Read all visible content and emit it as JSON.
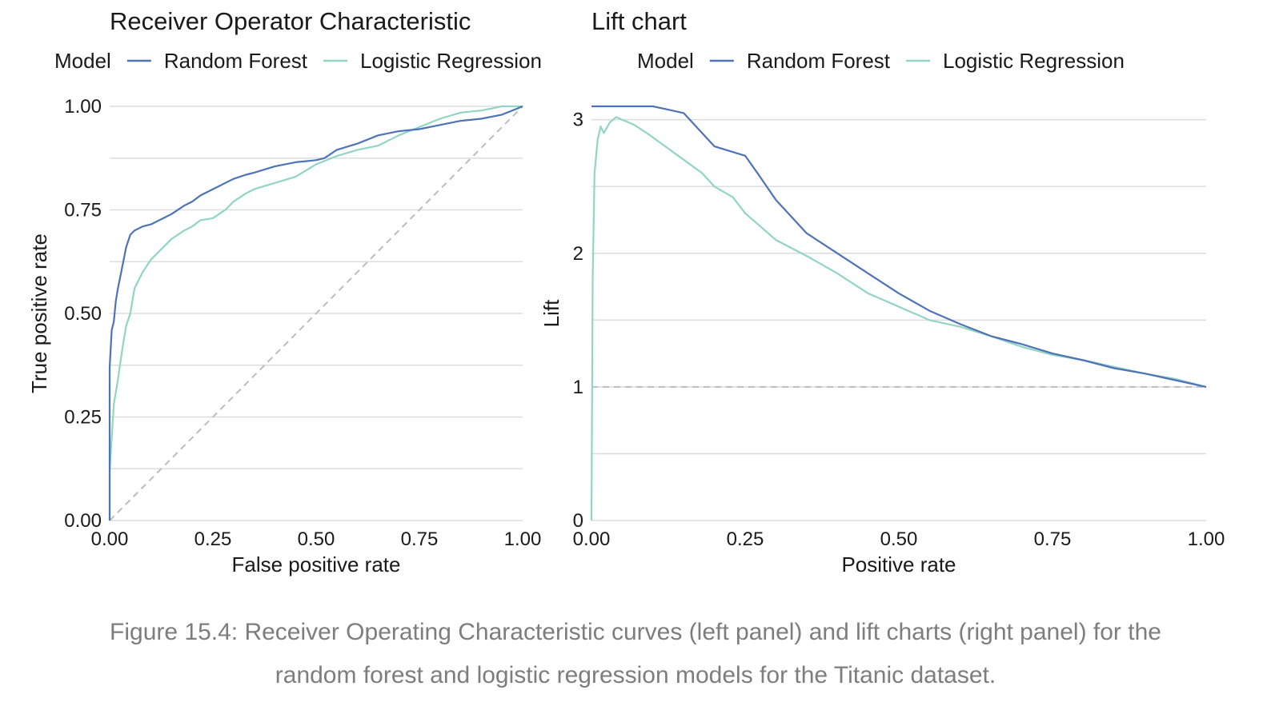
{
  "colors": {
    "random_forest": "#4e73b8",
    "logistic_regression": "#91d5c2",
    "reference": "#bdbdbd"
  },
  "chart_data": [
    {
      "type": "line",
      "title": "Receiver Operator Characteristic",
      "legend": {
        "title": "Model",
        "placement": "top",
        "entries": [
          "Random Forest",
          "Logistic Regression"
        ]
      },
      "xlabel": "False positive rate",
      "ylabel": "True positive rate",
      "xlim": [
        0,
        1
      ],
      "ylim": [
        0,
        1
      ],
      "xticks": [
        "0.00",
        "0.25",
        "0.50",
        "0.75",
        "1.00"
      ],
      "yticks": [
        "0.00",
        "0.25",
        "0.50",
        "0.75",
        "1.00"
      ],
      "grid": true,
      "reference_line": {
        "style": "dashed",
        "points": [
          [
            0,
            0
          ],
          [
            1,
            1
          ]
        ]
      },
      "series": [
        {
          "name": "Random Forest",
          "x": [
            0,
            0,
            0.005,
            0.01,
            0.015,
            0.02,
            0.03,
            0.04,
            0.05,
            0.06,
            0.08,
            0.1,
            0.13,
            0.15,
            0.18,
            0.2,
            0.22,
            0.25,
            0.28,
            0.3,
            0.33,
            0.35,
            0.4,
            0.45,
            0.5,
            0.52,
            0.55,
            0.6,
            0.65,
            0.7,
            0.75,
            0.8,
            0.85,
            0.9,
            0.95,
            1.0
          ],
          "y": [
            0,
            0.37,
            0.46,
            0.48,
            0.53,
            0.56,
            0.61,
            0.66,
            0.69,
            0.7,
            0.71,
            0.715,
            0.73,
            0.74,
            0.76,
            0.77,
            0.785,
            0.8,
            0.815,
            0.825,
            0.835,
            0.84,
            0.855,
            0.865,
            0.87,
            0.875,
            0.895,
            0.91,
            0.93,
            0.94,
            0.945,
            0.955,
            0.965,
            0.97,
            0.98,
            1.0
          ]
        },
        {
          "name": "Logistic Regression",
          "x": [
            0,
            0,
            0.005,
            0.01,
            0.02,
            0.03,
            0.04,
            0.05,
            0.06,
            0.08,
            0.1,
            0.12,
            0.15,
            0.18,
            0.2,
            0.22,
            0.25,
            0.28,
            0.3,
            0.33,
            0.35,
            0.4,
            0.45,
            0.5,
            0.55,
            0.6,
            0.65,
            0.7,
            0.75,
            0.8,
            0.85,
            0.9,
            0.95,
            1.0
          ],
          "y": [
            0,
            0.12,
            0.2,
            0.28,
            0.34,
            0.41,
            0.47,
            0.5,
            0.56,
            0.6,
            0.63,
            0.65,
            0.68,
            0.7,
            0.71,
            0.725,
            0.73,
            0.75,
            0.77,
            0.79,
            0.8,
            0.815,
            0.83,
            0.86,
            0.88,
            0.895,
            0.905,
            0.93,
            0.95,
            0.97,
            0.985,
            0.99,
            1.0,
            1.0
          ]
        }
      ]
    },
    {
      "type": "line",
      "title": "Lift chart",
      "legend": {
        "title": "Model",
        "placement": "top",
        "entries": [
          "Random Forest",
          "Logistic Regression"
        ]
      },
      "xlabel": "Positive rate",
      "ylabel": "Lift",
      "xlim": [
        0,
        1
      ],
      "ylim": [
        0,
        3.1
      ],
      "xticks": [
        "0.00",
        "0.25",
        "0.50",
        "0.75",
        "1.00"
      ],
      "yticks": [
        "0",
        "1",
        "2",
        "3"
      ],
      "grid": true,
      "reference_line": {
        "style": "dashed",
        "points": [
          [
            0,
            1
          ],
          [
            1,
            1
          ]
        ]
      },
      "series": [
        {
          "name": "Random Forest",
          "x": [
            0,
            0.05,
            0.1,
            0.12,
            0.15,
            0.17,
            0.2,
            0.25,
            0.27,
            0.3,
            0.33,
            0.35,
            0.4,
            0.45,
            0.5,
            0.55,
            0.6,
            0.65,
            0.7,
            0.75,
            0.8,
            0.85,
            0.9,
            0.95,
            1.0
          ],
          "y": [
            3.1,
            3.1,
            3.1,
            3.08,
            3.05,
            2.95,
            2.8,
            2.73,
            2.6,
            2.4,
            2.25,
            2.15,
            2.0,
            1.85,
            1.7,
            1.57,
            1.47,
            1.38,
            1.32,
            1.25,
            1.2,
            1.14,
            1.1,
            1.05,
            1.0
          ]
        },
        {
          "name": "Logistic Regression",
          "x": [
            0,
            0.002,
            0.005,
            0.01,
            0.015,
            0.02,
            0.03,
            0.04,
            0.05,
            0.07,
            0.09,
            0.12,
            0.15,
            0.18,
            0.2,
            0.23,
            0.25,
            0.28,
            0.3,
            0.35,
            0.4,
            0.45,
            0.5,
            0.55,
            0.6,
            0.65,
            0.7,
            0.75,
            0.8,
            0.85,
            0.9,
            0.95,
            1.0
          ],
          "y": [
            0,
            1.8,
            2.6,
            2.85,
            2.95,
            2.9,
            2.98,
            3.02,
            3.0,
            2.96,
            2.9,
            2.8,
            2.7,
            2.6,
            2.5,
            2.42,
            2.3,
            2.18,
            2.1,
            1.98,
            1.85,
            1.7,
            1.6,
            1.5,
            1.45,
            1.38,
            1.3,
            1.24,
            1.2,
            1.15,
            1.1,
            1.06,
            1.0
          ]
        }
      ]
    }
  ],
  "caption": {
    "line1": "Figure 15.4: Receiver Operating Characteristic curves (left panel) and lift charts (right panel) for the",
    "line2": "random forest and logistic regression models for the Titanic dataset."
  }
}
